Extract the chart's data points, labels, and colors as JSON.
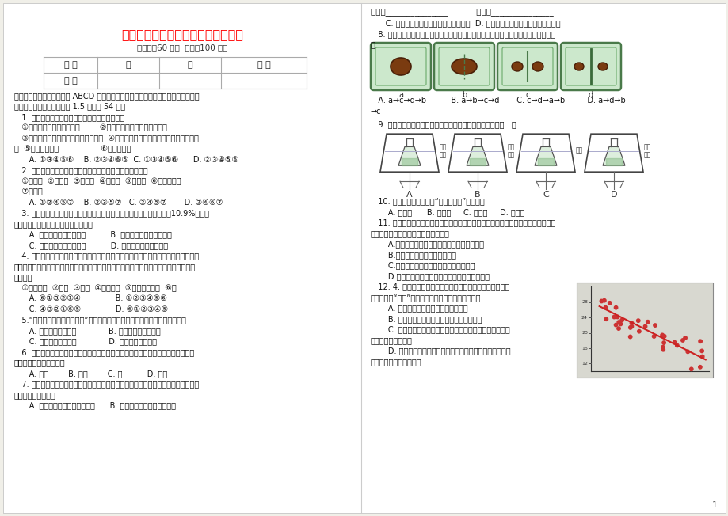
{
  "title": "七年级生物期中过程性质量调研试题",
  "subtitle": "（时间：60 分钟  满分：100 分）",
  "table_headers": [
    "题 号",
    "一",
    "二",
    "总 分"
  ],
  "table_row": [
    "得 分",
    "",
    "",
    ""
  ],
  "page_number": "1",
  "bg_color": "#ffffff",
  "title_color": "#ff0000",
  "text_color": "#000000",
  "table_border_color": "#ccbbcc",
  "divider_color": "#cccccc"
}
